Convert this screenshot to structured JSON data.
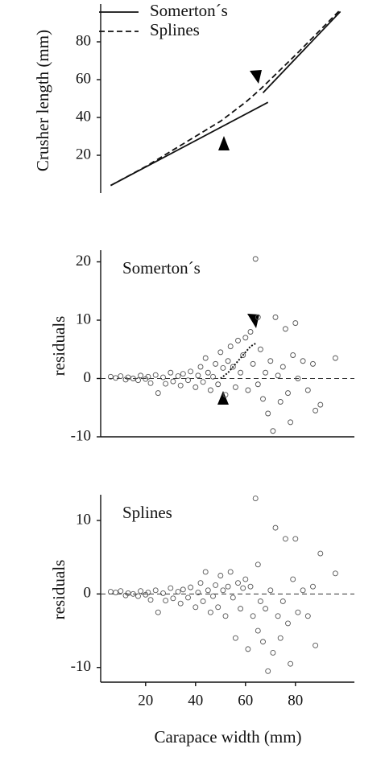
{
  "chart_data": [
    {
      "type": "line",
      "ylabel": "Crusher length (mm)",
      "xlim": [
        2,
        102
      ],
      "ylim": [
        0,
        100
      ],
      "yticks": [
        20,
        40,
        60,
        80
      ],
      "series": [
        {
          "name": "Somerton´s",
          "color": "#111111",
          "linestyle": "solid",
          "x": [
            6,
            69,
            null,
            67,
            98
          ],
          "values": [
            4,
            48,
            null,
            53,
            96
          ]
        },
        {
          "name": "Splines",
          "color": "#111111",
          "linestyle": "dashed",
          "x": [
            6,
            20,
            40,
            50,
            60,
            66,
            80,
            98
          ],
          "values": [
            4,
            14,
            30,
            38,
            48,
            55,
            73,
            97
          ]
        }
      ]
    },
    {
      "type": "scatter",
      "title": "Somerton´s",
      "ylabel": "residuals",
      "xlim": [
        2,
        102
      ],
      "ylim": [
        -10,
        22
      ],
      "yticks": [
        -10,
        0,
        10,
        20
      ],
      "reference_line": 0,
      "color": "#555555",
      "x": [
        6,
        8,
        10,
        12,
        13,
        15,
        17,
        18,
        20,
        21,
        22,
        24,
        25,
        27,
        28,
        30,
        31,
        33,
        34,
        35,
        37,
        38,
        40,
        41,
        42,
        43,
        44,
        45,
        46,
        47,
        48,
        49,
        50,
        51,
        52,
        53,
        54,
        55,
        56,
        57,
        58,
        59,
        60,
        61,
        62,
        63,
        64,
        65,
        65,
        66,
        67,
        68,
        69,
        70,
        71,
        72,
        73,
        74,
        75,
        76,
        77,
        78,
        79,
        80,
        81,
        83,
        85,
        87,
        88,
        90,
        96
      ],
      "values": [
        0.3,
        0.1,
        0.4,
        -0.2,
        0.2,
        0.0,
        -0.3,
        0.5,
        -0.1,
        0.3,
        -0.8,
        0.6,
        -2.5,
        0.2,
        -0.9,
        1.0,
        -0.5,
        0.4,
        -1.2,
        0.8,
        -0.3,
        1.2,
        -1.5,
        0.5,
        2.0,
        -0.6,
        3.5,
        1.0,
        -2.0,
        0.3,
        2.5,
        -1.0,
        4.5,
        1.8,
        -2.8,
        3.0,
        5.5,
        2.0,
        -1.5,
        6.5,
        1.0,
        4.0,
        7.0,
        -2.0,
        8.0,
        2.5,
        20.5,
        -1.0,
        10.5,
        5.0,
        -3.5,
        1.0,
        -6.0,
        3.0,
        -9.0,
        10.5,
        0.5,
        -4.0,
        2.0,
        8.5,
        -2.5,
        -7.5,
        4.0,
        9.5,
        0.0,
        3.0,
        -2.0,
        2.5,
        -5.5,
        -4.5,
        3.5
      ],
      "curve": {
        "x": [
          50,
          53,
          56,
          59,
          62,
          64
        ],
        "values": [
          0,
          1,
          2.5,
          4,
          5.5,
          6
        ]
      }
    },
    {
      "type": "scatter",
      "title": "Splines",
      "ylabel": "residuals",
      "xlabel": "Carapace width (mm)",
      "xlim": [
        2,
        102
      ],
      "ylim": [
        -12,
        13.5
      ],
      "xticks": [
        20,
        40,
        60,
        80
      ],
      "yticks": [
        -10,
        0,
        10
      ],
      "reference_line": 0,
      "color": "#555555",
      "x": [
        6,
        8,
        10,
        12,
        13,
        15,
        17,
        18,
        20,
        21,
        22,
        24,
        25,
        27,
        28,
        30,
        31,
        33,
        34,
        35,
        37,
        38,
        40,
        41,
        42,
        43,
        44,
        45,
        46,
        47,
        48,
        49,
        50,
        51,
        52,
        53,
        54,
        55,
        56,
        57,
        58,
        59,
        60,
        61,
        62,
        63,
        64,
        65,
        65,
        66,
        67,
        68,
        69,
        70,
        71,
        72,
        73,
        74,
        75,
        76,
        77,
        78,
        79,
        80,
        81,
        83,
        85,
        87,
        88,
        90,
        96
      ],
      "values": [
        0.3,
        0.2,
        0.4,
        -0.2,
        0.1,
        0.0,
        -0.3,
        0.4,
        -0.1,
        0.2,
        -0.8,
        0.5,
        -2.5,
        0.1,
        -0.9,
        0.8,
        -0.6,
        0.3,
        -1.3,
        0.6,
        -0.5,
        0.9,
        -1.8,
        0.2,
        1.5,
        -1.0,
        3.0,
        0.5,
        -2.5,
        -0.3,
        1.2,
        -1.8,
        2.5,
        0.5,
        -3.0,
        1.0,
        3.0,
        -0.5,
        -6.0,
        1.5,
        -2.0,
        0.8,
        2.0,
        -7.5,
        1.0,
        -3.0,
        13.0,
        -5.0,
        4.0,
        -1.0,
        -6.5,
        -2.0,
        -10.5,
        0.5,
        -8.0,
        9.0,
        -3.0,
        -6.0,
        -1.0,
        7.5,
        -4.0,
        -9.5,
        2.0,
        7.5,
        -2.5,
        0.5,
        -3.0,
        1.0,
        -7.0,
        5.5,
        2.8
      ]
    }
  ]
}
